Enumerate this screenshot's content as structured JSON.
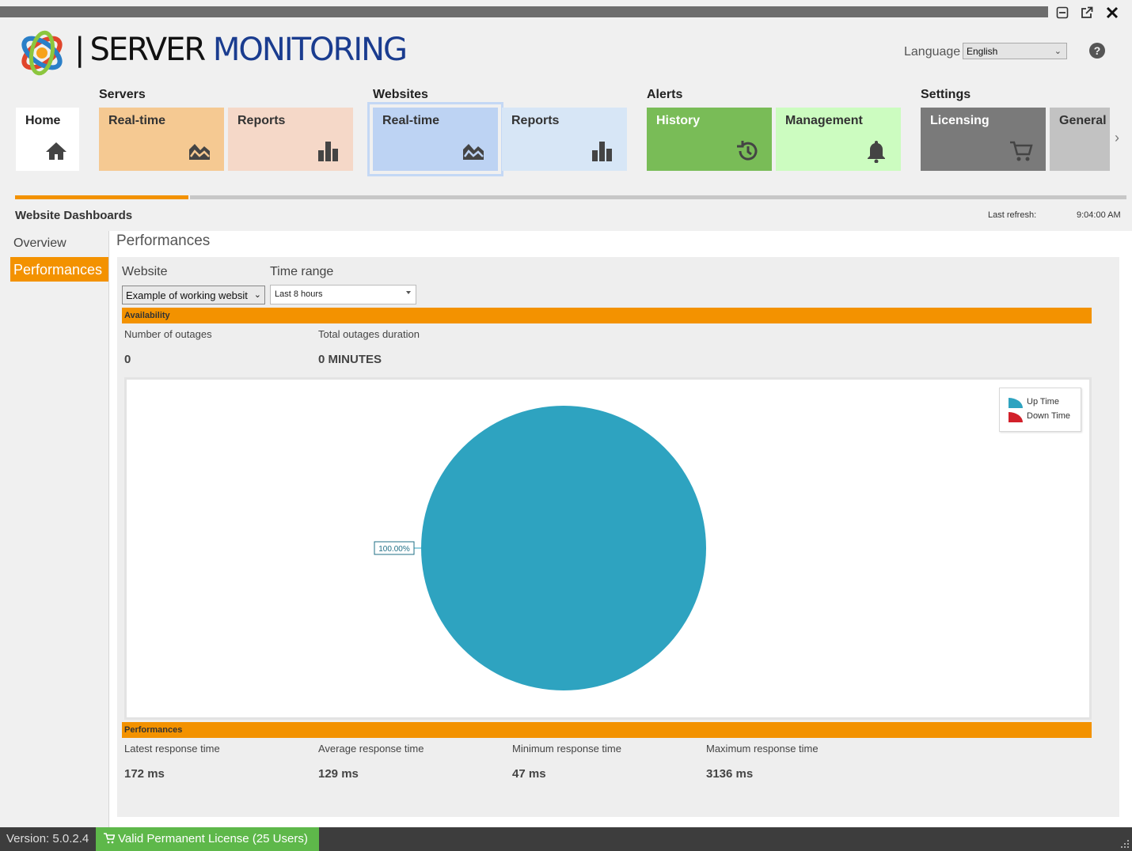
{
  "header": {
    "logo_word_1": "SERVER",
    "logo_word_2": "MONITORING",
    "separator": "|",
    "language_label": "Language",
    "language_value": "English",
    "help_label": "?"
  },
  "window_controls": {
    "icons": [
      "minimize-icon",
      "popout-icon",
      "close-icon"
    ]
  },
  "groups": {
    "servers": "Servers",
    "websites": "Websites",
    "alerts": "Alerts",
    "settings": "Settings"
  },
  "tiles": {
    "home": "Home",
    "servers_realtime": "Real-time",
    "servers_reports": "Reports",
    "websites_realtime": "Real-time",
    "websites_reports": "Reports",
    "history": "History",
    "management": "Management",
    "licensing": "Licensing",
    "general": "General S",
    "scroll_right": "›"
  },
  "colors": {
    "accent": "#f39200",
    "servers_realtime": "#f5c992",
    "servers_reports": "#f5d8c8",
    "websites_realtime": "#bdd3f3",
    "websites_reports": "#d7e6f6",
    "history": "#79bc57",
    "management": "#ccfcc0",
    "licensing": "#7a7a7a",
    "general": "#c2c2c2",
    "uptime": "#2ea3c0",
    "downtime": "#d2202a",
    "license_ok": "#5eb84a"
  },
  "dashboard": {
    "section_title": "Website Dashboards",
    "last_refresh_label": "Last refresh:",
    "last_refresh_value": "9:04:00 AM",
    "nav": {
      "overview": "Overview",
      "performances": "Performances"
    },
    "page_title": "Performances",
    "filters": {
      "website_label": "Website",
      "website_value": "Example of working websit",
      "time_range_label": "Time range",
      "time_range_value": "Last 8 hours"
    },
    "availability": {
      "header": "Availability",
      "outages_label": "Number of outages",
      "outages_value": "0",
      "duration_label": "Total outages duration",
      "duration_value": "0 MINUTES"
    },
    "performances": {
      "header": "Performances",
      "latest_label": "Latest response time",
      "latest_value": "172 ms",
      "average_label": "Average response time",
      "average_value": "129 ms",
      "minimum_label": "Minimum response time",
      "minimum_value": "47 ms",
      "maximum_label": "Maximum response time",
      "maximum_value": "3136 ms"
    }
  },
  "chart_data": {
    "type": "pie",
    "categories": [
      "Up Time",
      "Down Time"
    ],
    "values": [
      100,
      0
    ],
    "data_labels": [
      "100.00%"
    ],
    "legend": "top-right"
  },
  "status_bar": {
    "version": "Version: 5.0.2.4",
    "license": "Valid Permanent License (25 Users)"
  }
}
